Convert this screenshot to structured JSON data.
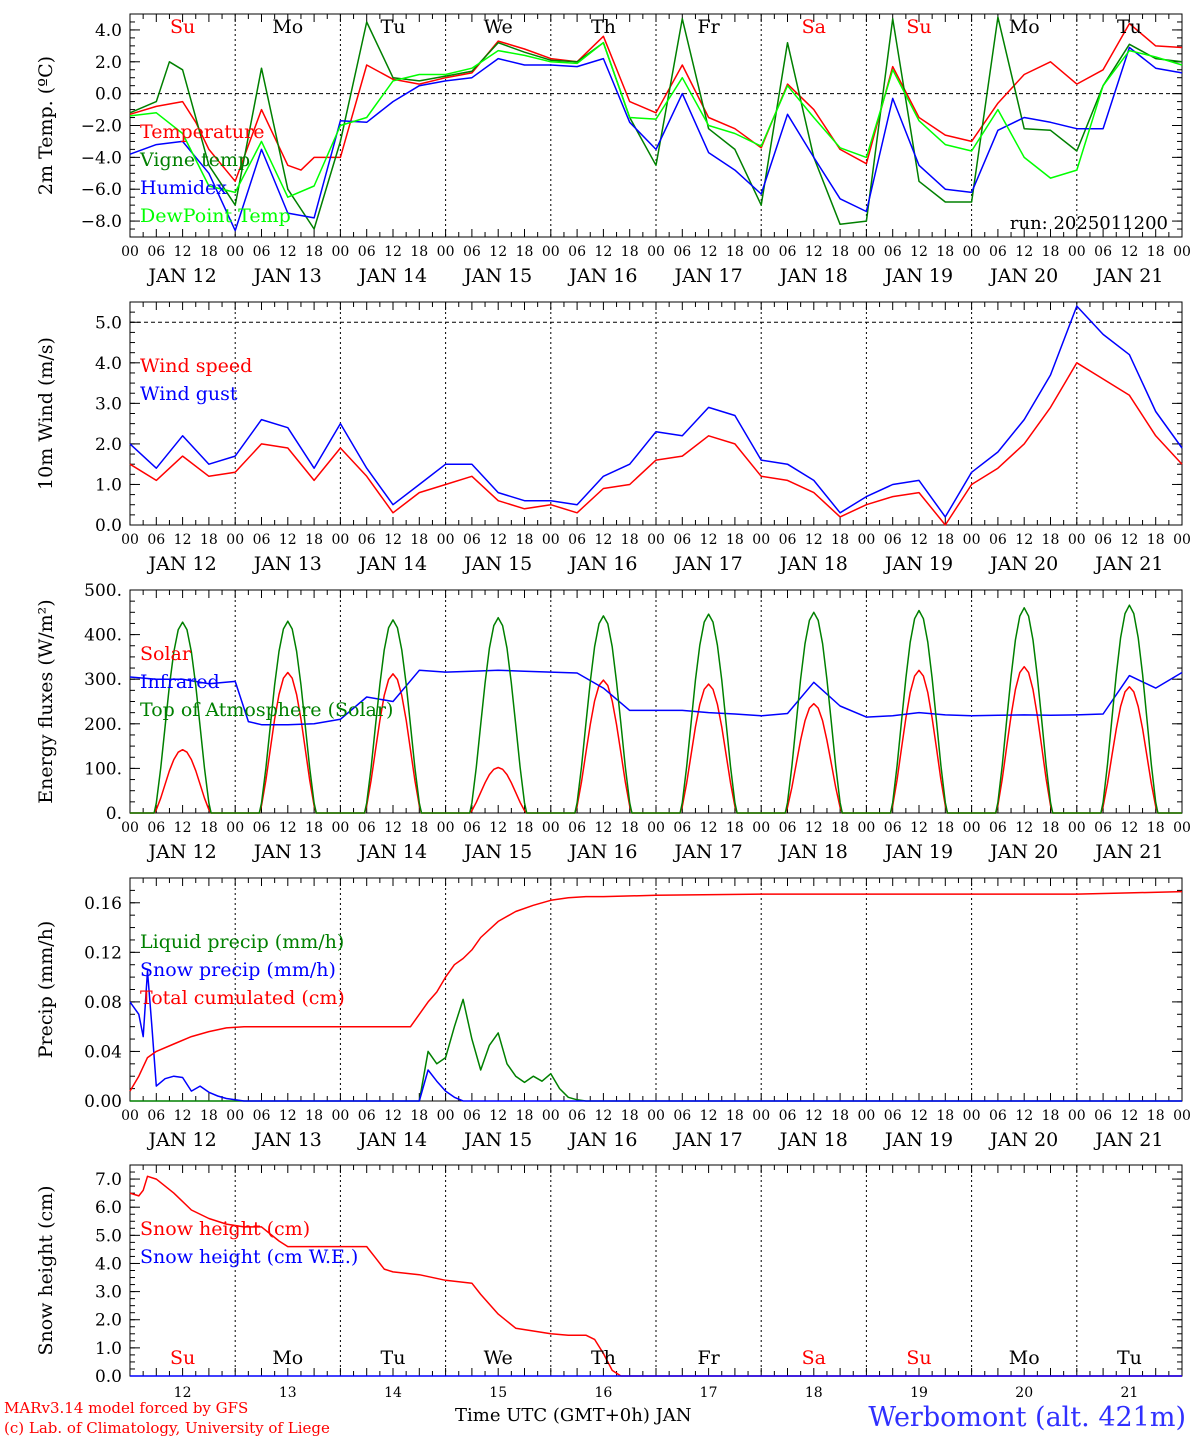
{
  "footer": {
    "credit_line1": "MARv3.14 model forced by GFS",
    "credit_line2": "(c) Lab. of Climatology, University of Liege",
    "station": "Werbomont (alt. 421m)",
    "x_title": "Time UTC (GMT+0h) JAN"
  },
  "colors": {
    "red": "#ff0000",
    "green": "#008000",
    "blue": "#0000ff",
    "lightgreen": "#00ff00",
    "purple": "#8000ff"
  },
  "days": [
    "JAN 12",
    "JAN 13",
    "JAN 14",
    "JAN 15",
    "JAN 16",
    "JAN 17",
    "JAN 18",
    "JAN 19",
    "JAN 20",
    "JAN 21"
  ],
  "day_numbers": [
    "12",
    "13",
    "14",
    "15",
    "16",
    "17",
    "18",
    "19",
    "20",
    "21"
  ],
  "weekdays": [
    "Su",
    "Mo",
    "Tu",
    "We",
    "Th",
    "Fr",
    "Sa",
    "Su",
    "Mo",
    "Tu"
  ],
  "weekday_colors": [
    "red",
    "black",
    "black",
    "black",
    "black",
    "black",
    "red",
    "red",
    "black",
    "black"
  ],
  "hour_labels": [
    "00",
    "06",
    "12",
    "18"
  ],
  "chart_data": [
    {
      "type": "line",
      "ylabel": "2m Temp. (ºC)",
      "ylim": [
        -9,
        5
      ],
      "yticks": [
        -8,
        -6,
        -4,
        -2,
        0,
        2,
        4
      ],
      "ytick_labels": [
        "−8.0",
        "−6.0",
        "−4.0",
        "−2.0",
        "0.0",
        "2.0",
        "4.0"
      ],
      "reference_line": 0,
      "annotation": "run: 2025011200",
      "x_unit": "hours since 2025-01-12 00 UTC",
      "xlim": [
        0,
        240
      ],
      "series": [
        {
          "name": "Temperature",
          "color": "red",
          "x": [
            0,
            6,
            12,
            15,
            18,
            24,
            30,
            36,
            39,
            42,
            48,
            54,
            60,
            66,
            72,
            78,
            84,
            90,
            96,
            102,
            108,
            114,
            120,
            126,
            132,
            138,
            144,
            150,
            156,
            162,
            168,
            174,
            180,
            186,
            192,
            198,
            204,
            210,
            216,
            222,
            228,
            234,
            240
          ],
          "y": [
            -1.3,
            -0.8,
            -0.5,
            -1.8,
            -3.5,
            -5.5,
            -1.0,
            -4.5,
            -4.8,
            -4.0,
            -4.0,
            1.8,
            0.9,
            0.6,
            1.0,
            1.3,
            3.3,
            2.8,
            2.2,
            2.0,
            3.6,
            -0.5,
            -1.2,
            1.8,
            -1.5,
            -2.2,
            -3.4,
            0.6,
            -1.0,
            -3.5,
            -4.4,
            1.7,
            -1.5,
            -2.6,
            -3.0,
            -0.6,
            1.2,
            2.0,
            0.6,
            1.5,
            4.4,
            3.0,
            2.9
          ]
        },
        {
          "name": "Vigne temp",
          "color": "green",
          "x": [
            0,
            6,
            9,
            12,
            18,
            24,
            30,
            36,
            42,
            48,
            54,
            60,
            66,
            72,
            78,
            84,
            90,
            96,
            102,
            108,
            114,
            120,
            126,
            132,
            138,
            144,
            150,
            156,
            162,
            168,
            174,
            180,
            186,
            192,
            198,
            204,
            210,
            216,
            222,
            228,
            234,
            240
          ],
          "y": [
            -1.2,
            -0.5,
            2.0,
            1.5,
            -4.5,
            -7.0,
            1.6,
            -6.0,
            -8.5,
            -3.0,
            4.5,
            1.0,
            0.8,
            1.1,
            1.4,
            3.2,
            2.6,
            2.1,
            2.0,
            3.2,
            -1.5,
            -4.5,
            4.7,
            -2.2,
            -3.5,
            -7.0,
            3.2,
            -4.0,
            -8.2,
            -8.0,
            4.7,
            -5.5,
            -6.8,
            -6.8,
            4.8,
            -2.2,
            -2.3,
            -3.6,
            0.5,
            3.1,
            2.2,
            2.0
          ]
        },
        {
          "name": "Humidex",
          "color": "blue",
          "x": [
            0,
            6,
            12,
            18,
            24,
            30,
            36,
            42,
            48,
            54,
            60,
            66,
            72,
            78,
            84,
            90,
            96,
            102,
            108,
            114,
            120,
            126,
            132,
            138,
            144,
            150,
            156,
            162,
            168,
            174,
            180,
            186,
            192,
            198,
            204,
            210,
            216,
            222,
            228,
            234,
            240
          ],
          "y": [
            -3.8,
            -3.2,
            -3.0,
            -5.0,
            -8.6,
            -3.5,
            -7.5,
            -7.8,
            -1.7,
            -1.8,
            -0.5,
            0.5,
            0.8,
            1.0,
            2.2,
            1.8,
            1.8,
            1.7,
            2.2,
            -1.8,
            -3.5,
            0.0,
            -3.7,
            -4.8,
            -6.3,
            -1.3,
            -4.0,
            -6.6,
            -7.4,
            -0.3,
            -4.5,
            -6.0,
            -6.2,
            -2.3,
            -1.5,
            -1.8,
            -2.2,
            -2.2,
            2.9,
            1.6,
            1.3
          ]
        },
        {
          "name": "DewPoint Temp",
          "color": "lightgreen",
          "x": [
            0,
            6,
            12,
            18,
            24,
            30,
            36,
            42,
            48,
            54,
            60,
            66,
            72,
            78,
            84,
            90,
            96,
            102,
            108,
            114,
            120,
            126,
            132,
            138,
            144,
            150,
            156,
            162,
            168,
            174,
            180,
            186,
            192,
            198,
            204,
            210,
            216,
            222,
            228,
            234,
            240
          ],
          "y": [
            -1.4,
            -1.2,
            -2.5,
            -5.8,
            -6.2,
            -3.0,
            -6.5,
            -5.8,
            -2.0,
            -1.5,
            0.8,
            1.2,
            1.2,
            1.6,
            2.7,
            2.4,
            2.0,
            1.9,
            3.2,
            -1.5,
            -1.6,
            1.0,
            -2.0,
            -2.5,
            -3.3,
            0.5,
            -1.5,
            -3.4,
            -4.0,
            1.5,
            -1.7,
            -3.2,
            -3.6,
            -1.0,
            -4.0,
            -5.3,
            -4.8,
            0.5,
            2.7,
            2.3,
            1.8
          ]
        }
      ]
    },
    {
      "type": "line",
      "ylabel": "10m Wind (m/s)",
      "ylim": [
        0,
        5.5
      ],
      "yticks": [
        0,
        1,
        2,
        3,
        4,
        5
      ],
      "ytick_labels": [
        "0.0",
        "1.0",
        "2.0",
        "3.0",
        "4.0",
        "5.0"
      ],
      "reference_line": 5,
      "x_unit": "hours since 2025-01-12 00 UTC",
      "xlim": [
        0,
        240
      ],
      "series": [
        {
          "name": "Wind speed",
          "color": "red",
          "x": [
            0,
            6,
            12,
            18,
            24,
            30,
            36,
            42,
            48,
            54,
            60,
            66,
            72,
            78,
            84,
            90,
            96,
            102,
            108,
            114,
            120,
            126,
            132,
            138,
            144,
            150,
            156,
            162,
            168,
            174,
            180,
            186,
            192,
            198,
            204,
            210,
            216,
            222,
            228,
            234,
            240
          ],
          "y": [
            1.5,
            1.1,
            1.7,
            1.2,
            1.3,
            2.0,
            1.9,
            1.1,
            1.9,
            1.2,
            0.3,
            0.8,
            1.0,
            1.2,
            0.6,
            0.4,
            0.5,
            0.3,
            0.9,
            1.0,
            1.6,
            1.7,
            2.2,
            2.0,
            1.2,
            1.1,
            0.8,
            0.2,
            0.5,
            0.7,
            0.8,
            0.0,
            1.0,
            1.4,
            2.0,
            2.9,
            4.0,
            3.6,
            3.2,
            2.2,
            1.5
          ]
        },
        {
          "name": "Wind gust",
          "color": "blue",
          "x": [
            0,
            6,
            12,
            18,
            24,
            30,
            36,
            42,
            48,
            54,
            60,
            66,
            72,
            78,
            84,
            90,
            96,
            102,
            108,
            114,
            120,
            126,
            132,
            138,
            144,
            150,
            156,
            162,
            168,
            174,
            180,
            186,
            192,
            198,
            204,
            210,
            216,
            222,
            228,
            234,
            240
          ],
          "y": [
            2.0,
            1.4,
            2.2,
            1.5,
            1.7,
            2.6,
            2.4,
            1.4,
            2.5,
            1.4,
            0.5,
            1.0,
            1.5,
            1.5,
            0.8,
            0.6,
            0.6,
            0.5,
            1.2,
            1.5,
            2.3,
            2.2,
            2.9,
            2.7,
            1.6,
            1.5,
            1.1,
            0.3,
            0.7,
            1.0,
            1.1,
            0.2,
            1.3,
            1.8,
            2.6,
            3.7,
            5.4,
            4.7,
            4.2,
            2.8,
            1.9
          ]
        }
      ]
    },
    {
      "type": "line",
      "ylabel": "Energy fluxes (W/m²)",
      "ylim": [
        0,
        500
      ],
      "yticks": [
        0,
        100,
        200,
        300,
        400,
        500
      ],
      "ytick_labels": [
        "0.",
        "100.",
        "200.",
        "300.",
        "400.",
        "500."
      ],
      "x_unit": "hours since 2025-01-12 00 UTC",
      "xlim": [
        0,
        240
      ],
      "series": [
        {
          "name": "Solar",
          "color": "red",
          "peak_hour": 12,
          "daily_peaks": [
            142,
            315,
            312,
            102,
            298,
            289,
            245,
            320,
            328,
            283
          ]
        },
        {
          "name": "Infrared",
          "color": "blue",
          "x": [
            0,
            6,
            12,
            18,
            24,
            27,
            30,
            36,
            42,
            48,
            54,
            60,
            66,
            72,
            78,
            84,
            90,
            96,
            102,
            108,
            114,
            120,
            126,
            132,
            138,
            144,
            150,
            156,
            162,
            168,
            174,
            180,
            186,
            192,
            198,
            204,
            210,
            216,
            222,
            228,
            234,
            240
          ],
          "y": [
            305,
            300,
            300,
            290,
            295,
            205,
            198,
            198,
            200,
            210,
            260,
            250,
            320,
            316,
            318,
            320,
            318,
            316,
            314,
            280,
            230,
            230,
            230,
            225,
            222,
            218,
            223,
            293,
            240,
            215,
            218,
            225,
            220,
            218,
            219,
            220,
            219,
            220,
            222,
            308,
            280,
            315
          ]
        },
        {
          "name": "Top of Atmosphere (Solar)",
          "color": "green",
          "peak_hour": 12,
          "daily_peaks": [
            428,
            430,
            433,
            438,
            442,
            446,
            450,
            454,
            460,
            466
          ]
        }
      ]
    },
    {
      "type": "line",
      "ylabel": "Precip (mm/h)",
      "ylim": [
        0,
        0.18
      ],
      "yticks": [
        0,
        0.04,
        0.08,
        0.12,
        0.16
      ],
      "ytick_labels": [
        "0.00",
        "0.04",
        "0.08",
        "0.12",
        "0.16"
      ],
      "x_unit": "hours since 2025-01-12 00 UTC",
      "xlim": [
        0,
        240
      ],
      "series": [
        {
          "name": "Liquid precip (mm/h)",
          "color": "green",
          "x": [
            0,
            66,
            68,
            70,
            72,
            74,
            76,
            78,
            80,
            82,
            84,
            86,
            88,
            90,
            92,
            94,
            96,
            98,
            100,
            102,
            104,
            240
          ],
          "y": [
            0,
            0,
            0.04,
            0.03,
            0.035,
            0.06,
            0.082,
            0.05,
            0.025,
            0.045,
            0.055,
            0.03,
            0.02,
            0.015,
            0.02,
            0.016,
            0.022,
            0.01,
            0.003,
            0.001,
            0,
            0
          ]
        },
        {
          "name": "Snow precip (mm/h)",
          "color": "blue",
          "x": [
            0,
            2,
            3,
            4,
            5,
            6,
            8,
            10,
            12,
            14,
            16,
            18,
            20,
            22,
            24,
            26,
            66,
            68,
            70,
            72,
            74,
            76,
            240
          ],
          "y": [
            0.08,
            0.07,
            0.052,
            0.105,
            0.06,
            0.012,
            0.018,
            0.02,
            0.019,
            0.008,
            0.012,
            0.007,
            0.004,
            0.002,
            0.001,
            0,
            0,
            0.025,
            0.016,
            0.008,
            0.003,
            0,
            0
          ]
        },
        {
          "name": "Total cumulated (cm)",
          "color": "red",
          "x": [
            0,
            2,
            4,
            6,
            10,
            14,
            18,
            22,
            26,
            30,
            36,
            42,
            48,
            54,
            60,
            64,
            66,
            68,
            70,
            72,
            74,
            76,
            78,
            80,
            84,
            88,
            92,
            96,
            100,
            104,
            108,
            120,
            144,
            168,
            192,
            216,
            228,
            240
          ],
          "y": [
            0.008,
            0.02,
            0.035,
            0.04,
            0.046,
            0.052,
            0.056,
            0.059,
            0.06,
            0.06,
            0.06,
            0.06,
            0.06,
            0.06,
            0.06,
            0.06,
            0.07,
            0.08,
            0.088,
            0.1,
            0.11,
            0.115,
            0.122,
            0.132,
            0.145,
            0.153,
            0.158,
            0.162,
            0.164,
            0.165,
            0.165,
            0.166,
            0.167,
            0.167,
            0.167,
            0.167,
            0.168,
            0.169
          ]
        }
      ]
    },
    {
      "type": "line",
      "ylabel": "Snow height (cm)",
      "ylim": [
        0,
        7.5
      ],
      "yticks": [
        0,
        1,
        2,
        3,
        4,
        5,
        6,
        7
      ],
      "ytick_labels": [
        "0.0",
        "1.0",
        "2.0",
        "3.0",
        "4.0",
        "5.0",
        "6.0",
        "7.0"
      ],
      "x_unit": "hours since 2025-01-12 00 UTC",
      "xlim": [
        0,
        240
      ],
      "series": [
        {
          "name": "Snow height (cm)",
          "color": "red",
          "x": [
            0,
            2,
            3,
            4,
            6,
            10,
            14,
            18,
            22,
            26,
            30,
            34,
            36,
            42,
            48,
            54,
            56,
            58,
            60,
            66,
            72,
            78,
            80,
            84,
            88,
            92,
            96,
            100,
            104,
            106,
            108,
            110,
            112,
            240
          ],
          "y": [
            6.5,
            6.4,
            6.6,
            7.1,
            7.0,
            6.5,
            5.9,
            5.6,
            5.4,
            5.3,
            5.3,
            4.8,
            4.6,
            4.6,
            4.6,
            4.6,
            4.2,
            3.8,
            3.7,
            3.6,
            3.4,
            3.3,
            2.9,
            2.2,
            1.7,
            1.6,
            1.5,
            1.45,
            1.45,
            1.3,
            0.8,
            0.2,
            0.0,
            0.0
          ]
        },
        {
          "name": "Snow height (cm W.E.)",
          "color": "blue",
          "x": [
            0,
            240
          ],
          "y": [
            0,
            0
          ]
        }
      ]
    }
  ]
}
